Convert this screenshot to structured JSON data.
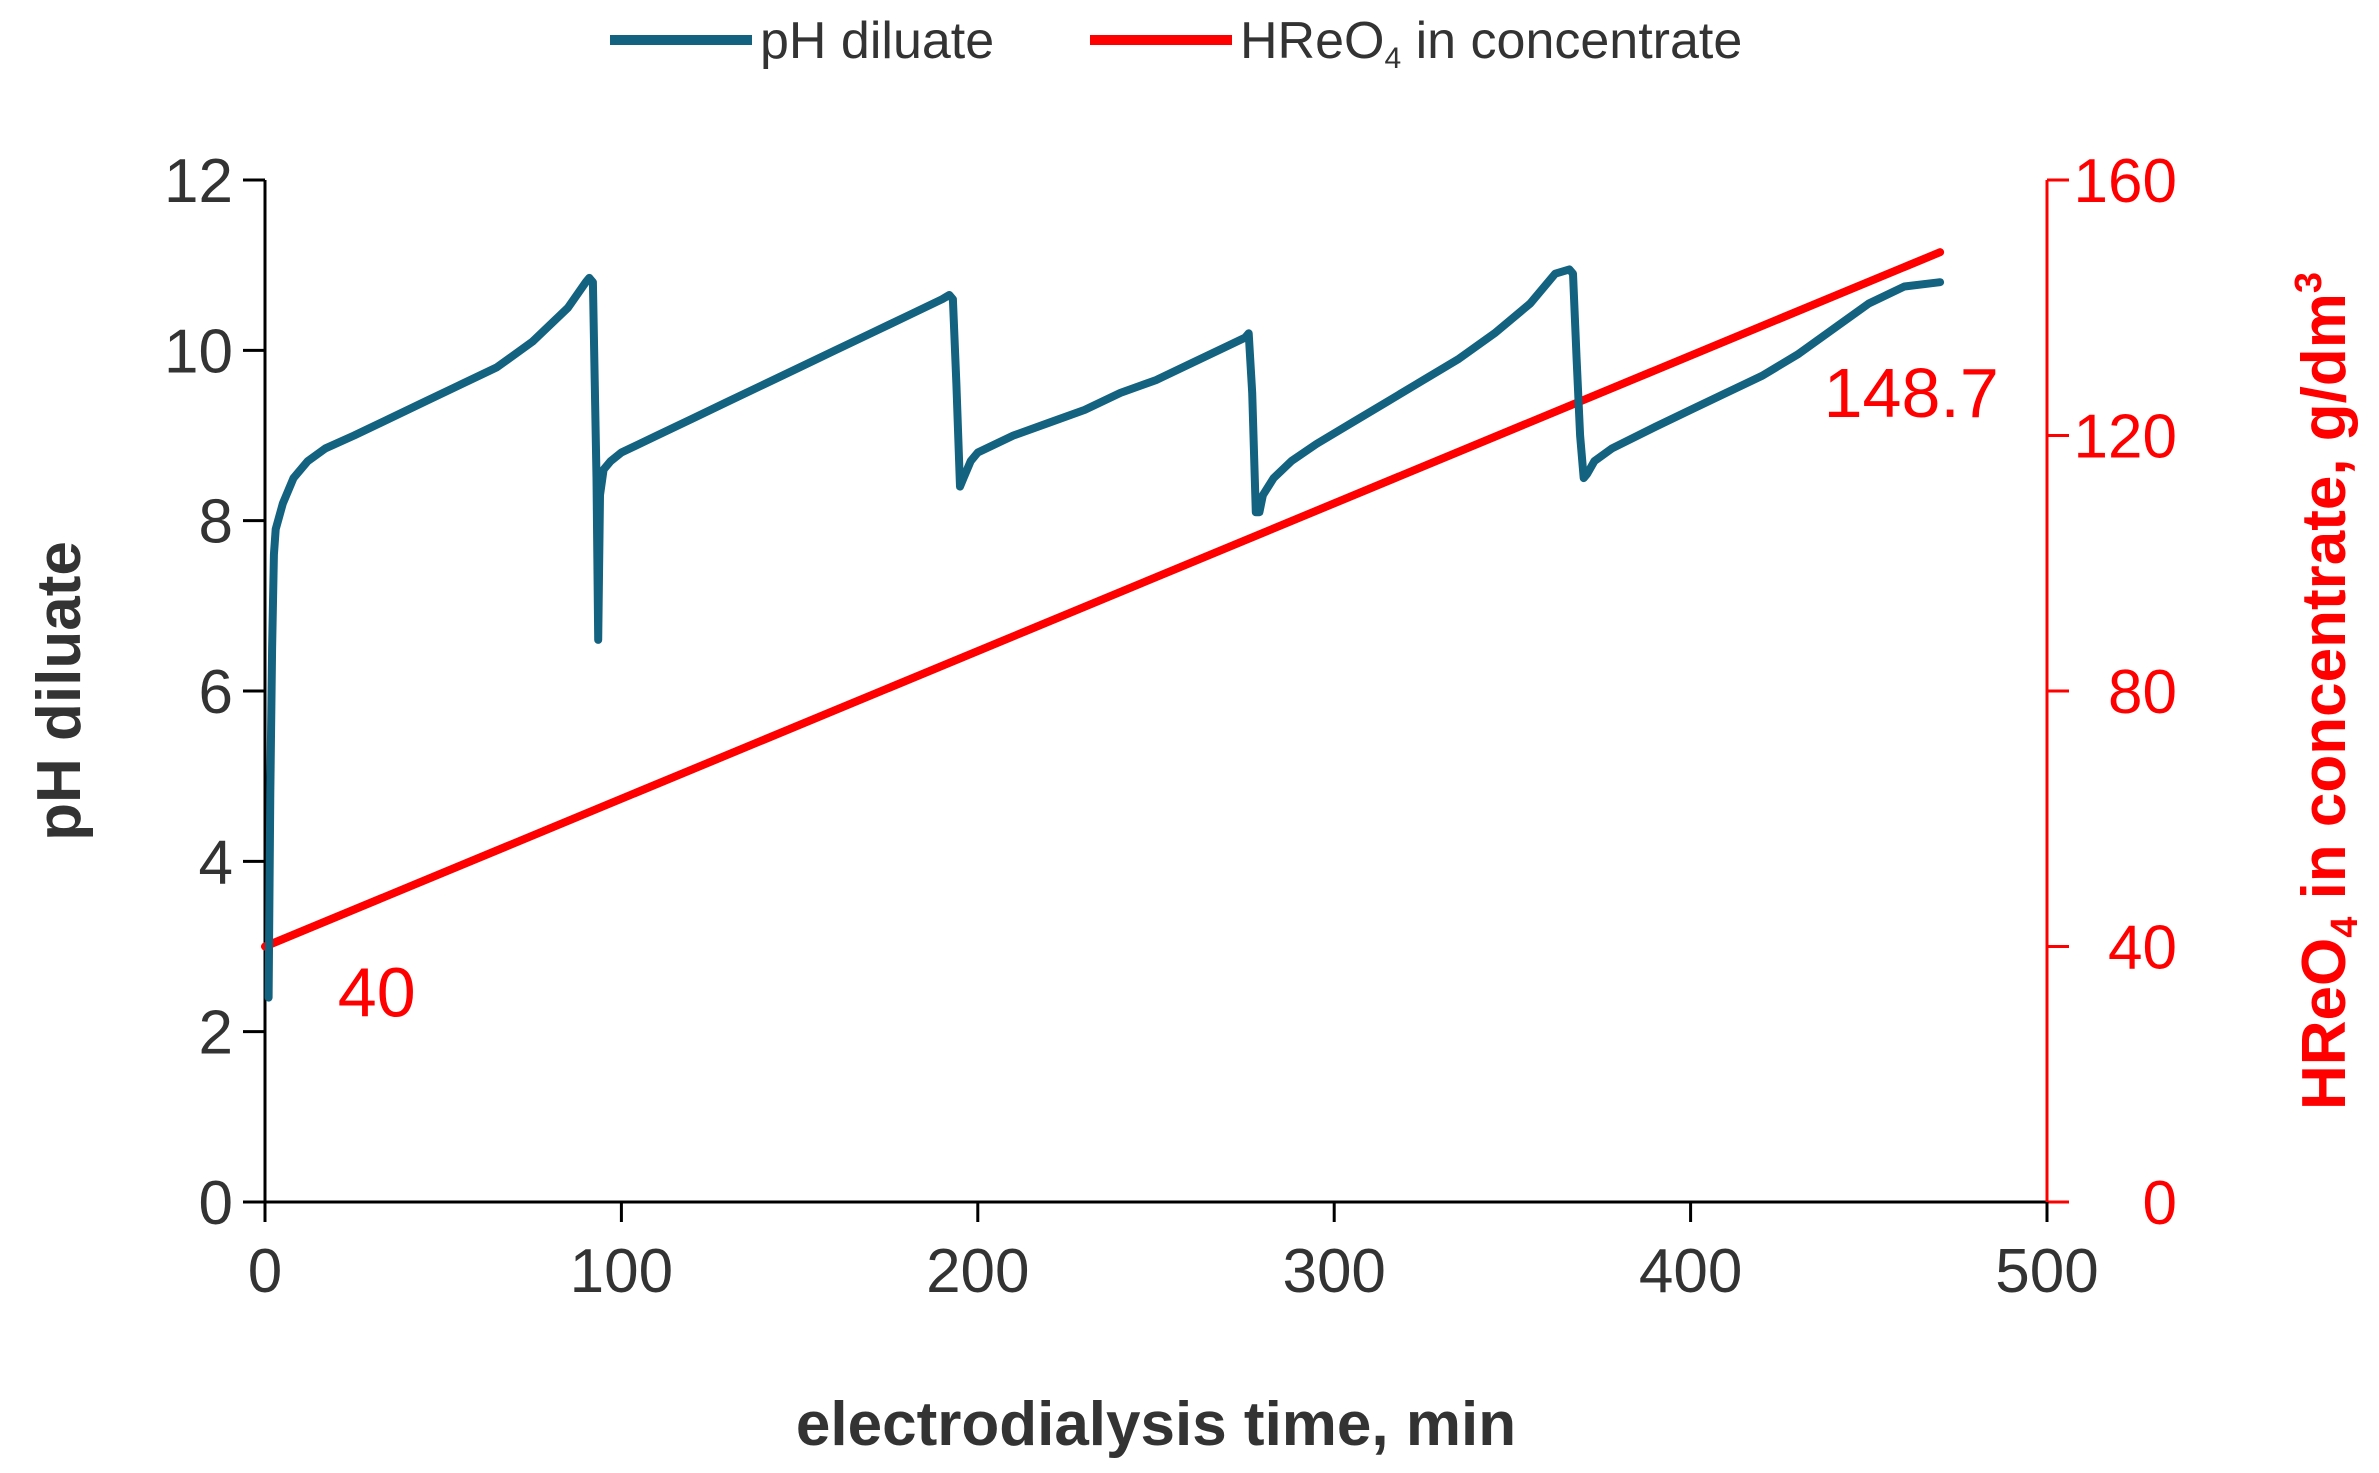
{
  "chart_data": {
    "type": "line",
    "title": "",
    "xlabel": "electrodialysis time, min",
    "ylabel": "pH diluate",
    "y2label": {
      "prefix": "HReO",
      "subscript": "4",
      "suffix": " in concentrate, g/dm",
      "superscript": "3"
    },
    "xlim": [
      0,
      500
    ],
    "ylim": [
      0,
      12
    ],
    "y2lim": [
      0,
      160
    ],
    "xticks": [
      0,
      100,
      200,
      300,
      400,
      500
    ],
    "yticks": [
      0,
      2,
      4,
      6,
      8,
      10,
      12
    ],
    "y2ticks": [
      0,
      40,
      80,
      120,
      160
    ],
    "grid": false,
    "legend_position": "top-center",
    "colors": {
      "ph": "#13627f",
      "hreo4": "#ff0000",
      "axis": "#000000"
    },
    "series": [
      {
        "name": "pH diluate",
        "axis": "left",
        "color": "#13627f",
        "x": [
          1,
          1.5,
          2,
          2.5,
          3,
          5,
          8,
          12,
          17,
          25,
          35,
          45,
          55,
          65,
          75,
          85,
          90,
          91,
          92,
          93,
          93.5,
          94,
          95,
          97,
          100,
          110,
          120,
          130,
          140,
          150,
          160,
          170,
          180,
          190,
          192,
          193,
          194,
          195,
          196,
          198,
          200,
          210,
          220,
          230,
          240,
          250,
          260,
          270,
          275,
          276,
          277,
          278,
          279,
          280,
          283,
          288,
          295,
          305,
          315,
          325,
          335,
          345,
          355,
          362,
          366,
          367,
          368,
          369,
          370,
          371,
          373,
          378,
          390,
          400,
          410,
          420,
          430,
          440,
          450,
          460,
          470
        ],
        "values": [
          2.4,
          4.8,
          6.5,
          7.6,
          7.9,
          8.2,
          8.5,
          8.7,
          8.85,
          9.0,
          9.2,
          9.4,
          9.6,
          9.8,
          10.1,
          10.5,
          10.8,
          10.85,
          10.8,
          8.5,
          6.6,
          8.3,
          8.6,
          8.7,
          8.8,
          9.0,
          9.2,
          9.4,
          9.6,
          9.8,
          10.0,
          10.2,
          10.4,
          10.6,
          10.65,
          10.6,
          9.6,
          8.4,
          8.5,
          8.7,
          8.8,
          9.0,
          9.15,
          9.3,
          9.5,
          9.65,
          9.85,
          10.05,
          10.15,
          10.2,
          9.5,
          8.1,
          8.1,
          8.3,
          8.5,
          8.7,
          8.9,
          9.15,
          9.4,
          9.65,
          9.9,
          10.2,
          10.55,
          10.9,
          10.95,
          10.9,
          9.9,
          9.0,
          8.5,
          8.55,
          8.7,
          8.85,
          9.1,
          9.3,
          9.5,
          9.7,
          9.95,
          10.25,
          10.55,
          10.75,
          10.8
        ]
      },
      {
        "name": "HReO₄ in concentrate",
        "axis": "right",
        "color": "#ff0000",
        "x": [
          0,
          470
        ],
        "values": [
          40,
          148.7
        ]
      }
    ],
    "legend": [
      {
        "label": "pH diluate",
        "color": "#13627f"
      },
      {
        "label_prefix": "HReO",
        "label_sub": "4",
        "label_suffix": " in concentrate",
        "color": "#ff0000"
      }
    ],
    "annotations": [
      {
        "text": "40",
        "x": 12,
        "y2": 40,
        "color": "#ff0000"
      },
      {
        "text": "148.7",
        "x": 450,
        "y2": 148.7,
        "color": "#ff0000"
      }
    ]
  }
}
